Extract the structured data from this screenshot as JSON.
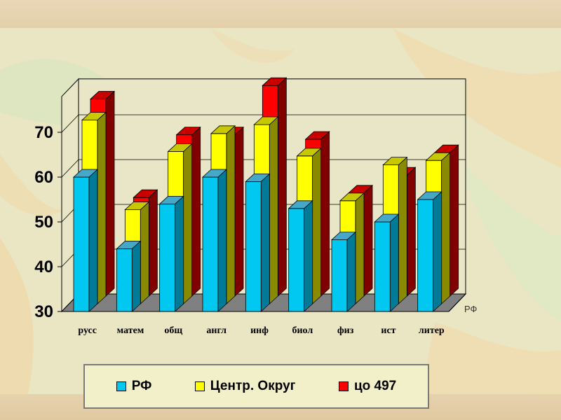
{
  "chart_data": {
    "type": "bar",
    "categories": [
      "русс",
      "матем",
      "общ",
      "англ",
      "инф",
      "биол",
      "физ",
      "ист",
      "литер"
    ],
    "series": [
      {
        "name": "РФ",
        "values": [
          60,
          44,
          54,
          60,
          59,
          53,
          46,
          50,
          55
        ]
      },
      {
        "name": "Центр. Округ",
        "values": [
          71,
          51,
          64,
          68,
          70,
          63,
          53,
          61,
          62
        ]
      },
      {
        "name": "цо 497",
        "values": [
          74,
          52,
          66,
          66,
          77,
          65,
          53,
          57,
          62
        ]
      }
    ],
    "ylim": [
      30,
      78
    ],
    "yticks": [
      30,
      40,
      50,
      60,
      70
    ],
    "depth_axis_label": "РФ",
    "grid": true,
    "legend_position": "bottom"
  },
  "colors": {
    "series": [
      "#00c8f0",
      "#ffff00",
      "#ff0000"
    ],
    "series_side": [
      "#007a96",
      "#8a8a00",
      "#800000"
    ],
    "series_top": [
      "#46a8c8",
      "#c8c800",
      "#c80000"
    ],
    "floor": "#808080",
    "wall": "#e8e6c6"
  }
}
